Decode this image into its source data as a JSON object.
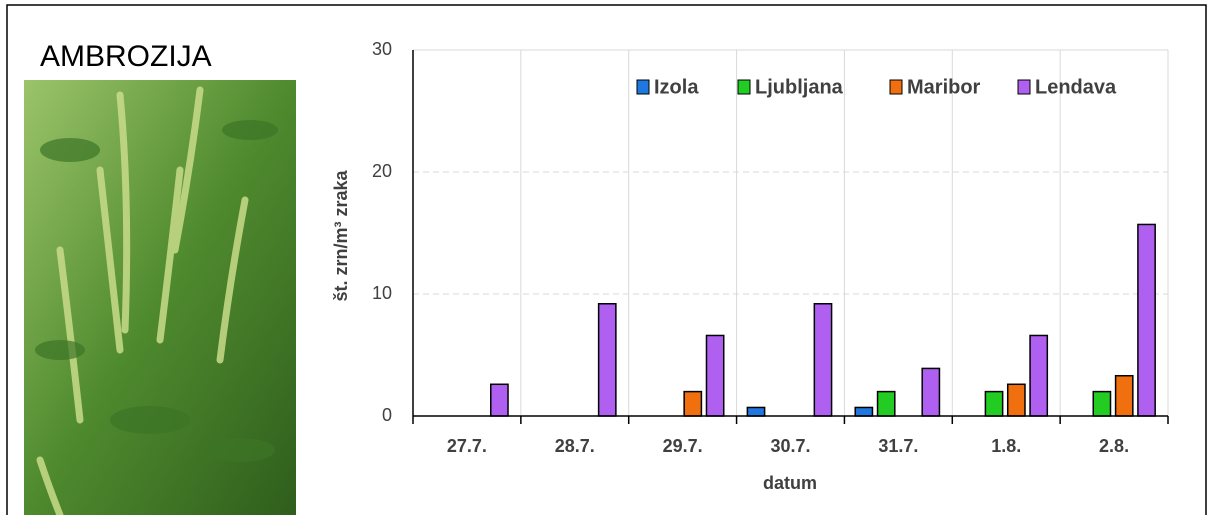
{
  "chart_data": {
    "type": "bar",
    "title": "AMBROZIJA",
    "ylabel": "št. zrn/m³ zraka",
    "xlabel": "datum",
    "categories": [
      "27.7.",
      "28.7.",
      "29.7.",
      "30.7.",
      "31.7.",
      "1.8.",
      "2.8."
    ],
    "series": [
      {
        "name": "Izola",
        "color": "#1f77e0",
        "values": [
          0,
          0,
          0,
          0.7,
          0.7,
          0,
          0
        ]
      },
      {
        "name": "Ljubljana",
        "color": "#22cc22",
        "values": [
          0,
          0,
          0,
          0,
          2.0,
          2.0,
          2.0
        ]
      },
      {
        "name": "Maribor",
        "color": "#f07010",
        "values": [
          0,
          0,
          2.0,
          0,
          0,
          2.6,
          3.3
        ]
      },
      {
        "name": "Lendava",
        "color": "#b060f0",
        "values": [
          2.6,
          9.2,
          6.6,
          9.2,
          3.9,
          6.6,
          15.7
        ]
      }
    ],
    "ylim": [
      0,
      30
    ],
    "yticks": [
      0,
      10,
      20,
      30
    ],
    "grid": true,
    "legend": "top-right"
  }
}
